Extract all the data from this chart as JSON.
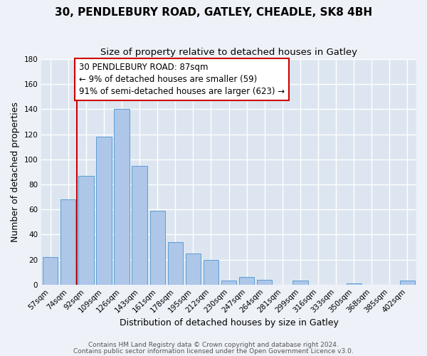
{
  "title": "30, PENDLEBURY ROAD, GATLEY, CHEADLE, SK8 4BH",
  "subtitle": "Size of property relative to detached houses in Gatley",
  "xlabel": "Distribution of detached houses by size in Gatley",
  "ylabel": "Number of detached properties",
  "categories": [
    "57sqm",
    "74sqm",
    "92sqm",
    "109sqm",
    "126sqm",
    "143sqm",
    "161sqm",
    "178sqm",
    "195sqm",
    "212sqm",
    "230sqm",
    "247sqm",
    "264sqm",
    "281sqm",
    "299sqm",
    "316sqm",
    "333sqm",
    "350sqm",
    "368sqm",
    "385sqm",
    "402sqm"
  ],
  "values": [
    22,
    68,
    87,
    118,
    140,
    95,
    59,
    34,
    25,
    20,
    3,
    6,
    4,
    0,
    3,
    0,
    0,
    1,
    0,
    0,
    3
  ],
  "bar_color": "#aec6e8",
  "bar_edge_color": "#5a9fd4",
  "vline_color": "#cc0000",
  "annotation_line1": "30 PENDLEBURY ROAD: 87sqm",
  "annotation_line2": "← 9% of detached houses are smaller (59)",
  "annotation_line3": "91% of semi-detached houses are larger (623) →",
  "annotation_box_color": "#ffffff",
  "annotation_box_edge_color": "#cc0000",
  "ylim": [
    0,
    180
  ],
  "yticks": [
    0,
    20,
    40,
    60,
    80,
    100,
    120,
    140,
    160,
    180
  ],
  "footer_line1": "Contains HM Land Registry data © Crown copyright and database right 2024.",
  "footer_line2": "Contains public sector information licensed under the Open Government Licence v3.0.",
  "background_color": "#eef2f8",
  "plot_bg_color": "#dde6f0",
  "grid_color": "#ffffff",
  "title_fontsize": 11,
  "subtitle_fontsize": 9.5,
  "axis_label_fontsize": 9,
  "tick_fontsize": 7.5,
  "annotation_fontsize": 8.5,
  "footer_fontsize": 6.5
}
